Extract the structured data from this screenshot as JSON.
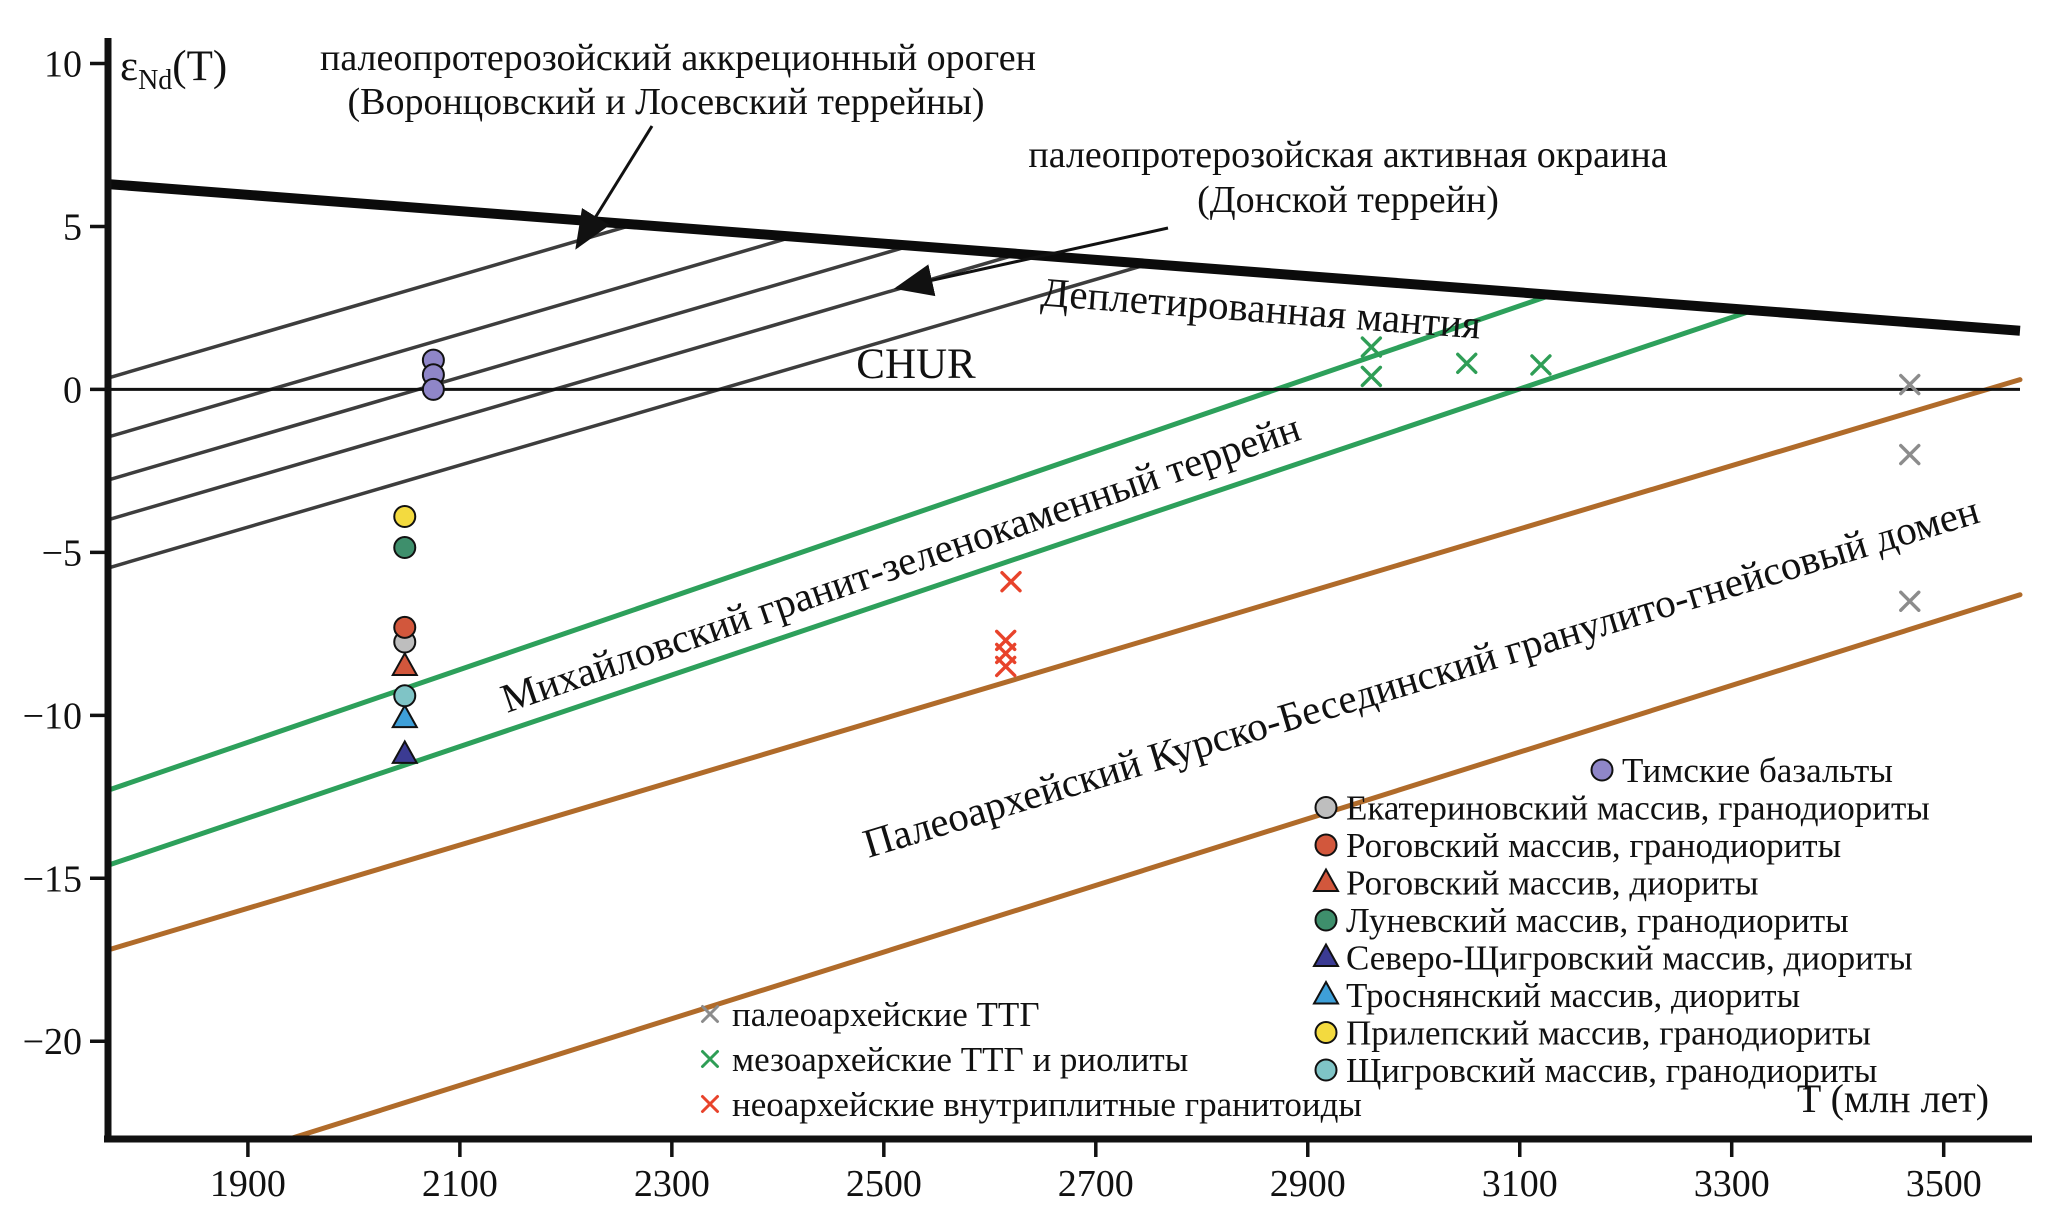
{
  "axes": {
    "y_label": {
      "epsilon": "ε",
      "sub": "Nd",
      "rest": "(T)"
    },
    "x_label": "T (млн лет)",
    "y_ticks": {
      "values": [
        10,
        5,
        0,
        -5,
        -10,
        -15,
        -20
      ],
      "labels": [
        "10",
        "5",
        "0",
        "−5",
        "−10",
        "−15",
        "−20"
      ]
    },
    "x_ticks": {
      "values": [
        1900,
        2100,
        2300,
        2500,
        2700,
        2900,
        3100,
        3300,
        3500
      ],
      "labels": [
        "1900",
        "2100",
        "2300",
        "2500",
        "2700",
        "2900",
        "3100",
        "3300",
        "3500"
      ]
    }
  },
  "annotations": {
    "accretionary": {
      "line1": "палеопротерозойский аккреционный ороген",
      "line2": "(Воронцовский и Лосевский террейны)"
    },
    "active_margin": {
      "line1": "палеопротерозойская активная окраина",
      "line2": "(Донской террейн)"
    },
    "dm_label": "Деплетированная мантия",
    "chur_label": "CHUR",
    "mikhailovsky_label": "Михайловский гранит-зеленокаменный террейн",
    "kursk_label": "Палеоархейский Курско-Бесединский гранулито-гнейсовый домен"
  },
  "chart_data": {
    "type": "scatter",
    "title": "",
    "xlabel": "T (млн лет)",
    "ylabel": "εNd(T)",
    "xlim": [
      1768,
      3572
    ],
    "ylim": [
      -23,
      10.2
    ],
    "grid": false,
    "legend_position": "bottom-right",
    "reference_lines": {
      "chur": {
        "id": "chur",
        "label": "CHUR",
        "color": "#111111",
        "width": 3,
        "x": [
          1768,
          3572
        ],
        "y": [
          0,
          0
        ]
      },
      "depleted_mantle": {
        "id": "depleted-mantle",
        "label": "Деплетированная мантия",
        "color": "#0b0b0b",
        "width": 10,
        "x": [
          1768,
          3572
        ],
        "y": [
          6.3,
          1.8
        ]
      }
    },
    "evolution_bands": [
      {
        "name": "paleoproterozoic-terranes",
        "label": "палеопротерозойский аккреционный ороген / палеопротерозойская активная окраина",
        "color": "#3d3d3d",
        "width": 3.5,
        "lines": [
          {
            "x": [
              1768,
              2264
            ],
            "y": [
              0.35,
              5.06
            ]
          },
          {
            "x": [
              1768,
              2415
            ],
            "y": [
              -1.46,
              4.69
            ]
          },
          {
            "x": [
              1768,
              2525
            ],
            "y": [
              -2.78,
              4.41
            ]
          },
          {
            "x": [
              1768,
              2627
            ],
            "y": [
              -4.0,
              4.16
            ]
          },
          {
            "x": [
              1768,
              2750
            ],
            "y": [
              -5.48,
              3.85
            ]
          }
        ]
      },
      {
        "name": "mikhailovsky-granite-greenstone-terrane",
        "label": "Михайловский гранит-зеленокаменный террейн",
        "color": "#2da05b",
        "width": 5,
        "lines": [
          {
            "x": [
              1768,
              3130
            ],
            "y": [
              -12.3,
              2.9
            ]
          },
          {
            "x": [
              1768,
              3320
            ],
            "y": [
              -14.6,
              2.43
            ]
          }
        ]
      },
      {
        "name": "kursk-besedino-granulite-gneiss-domain",
        "label": "Палеоархейский Курско-Бесединский гранулито-гнейсовый домен",
        "color": "#b06b2a",
        "width": 5,
        "lines": [
          {
            "x": [
              1768,
              3572
            ],
            "y": [
              -17.2,
              0.3
            ]
          },
          {
            "x": [
              1939,
              3572
            ],
            "y": [
              -23,
              -6.3
            ]
          }
        ]
      }
    ],
    "series": [
      {
        "name": "Тимские базальты",
        "marker": "circle",
        "color": "#8f86c8",
        "points": [
          [
            2075,
            0.9
          ],
          [
            2075,
            0.45
          ],
          [
            2075,
            0.0
          ]
        ]
      },
      {
        "name": "Екатериновский массив, гранодиориты",
        "marker": "circle",
        "color": "#bebebe",
        "points": [
          [
            2048,
            -7.75
          ]
        ]
      },
      {
        "name": "Роговский массив, гранодиориты",
        "marker": "circle",
        "color": "#d2573c",
        "points": [
          [
            2048,
            -7.3
          ]
        ]
      },
      {
        "name": "Роговский массив, диориты",
        "marker": "triangle",
        "color": "#d2573c",
        "points": [
          [
            2048,
            -8.5
          ]
        ]
      },
      {
        "name": "Луневский массив, гранодиориты",
        "marker": "circle",
        "color": "#3e8f6c",
        "points": [
          [
            2048,
            -4.85
          ]
        ]
      },
      {
        "name": "Северо-Щигровский массив, диориты",
        "marker": "triangle",
        "color": "#3b3b93",
        "points": [
          [
            2048,
            -11.2
          ]
        ]
      },
      {
        "name": "Троснянский массив, диориты",
        "marker": "triangle",
        "color": "#3e9fd8",
        "points": [
          [
            2048,
            -10.1
          ]
        ]
      },
      {
        "name": "Прилепский массив, гранодиориты",
        "marker": "circle",
        "color": "#f3da3f",
        "points": [
          [
            2048,
            -3.9
          ]
        ]
      },
      {
        "name": "Щигровский массив, гранодиориты",
        "marker": "circle",
        "color": "#7fc4c6",
        "points": [
          [
            2048,
            -9.4
          ]
        ]
      }
    ],
    "x_series": [
      {
        "name": "палеоархейские ТТГ",
        "marker": "x",
        "color": "#8c8c8c",
        "points": [
          [
            3468,
            0.15
          ],
          [
            3468,
            -2.0
          ],
          [
            3468,
            -6.5
          ]
        ]
      },
      {
        "name": "мезоархейские ТТГ и риолиты",
        "marker": "x",
        "color": "#2f9e56",
        "points": [
          [
            2960,
            1.3
          ],
          [
            2960,
            0.4
          ],
          [
            3050,
            0.8
          ],
          [
            3120,
            0.75
          ]
        ]
      },
      {
        "name": "неоархейские внутриплитные гранитоиды",
        "marker": "x",
        "color": "#e8432b",
        "points": [
          [
            2620,
            -5.9
          ],
          [
            2615,
            -7.7
          ],
          [
            2615,
            -8.1
          ],
          [
            2615,
            -8.5
          ]
        ]
      }
    ]
  }
}
